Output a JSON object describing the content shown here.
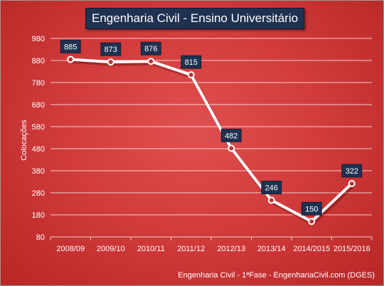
{
  "chart_data": {
    "type": "line",
    "title": "Engenharia Civil - Ensino Universitário",
    "xlabel": "",
    "ylabel": "Colocações",
    "categories": [
      "2008/09",
      "2009/10",
      "2010/11",
      "2011/12",
      "2012/13",
      "2013/14",
      "2014/2015",
      "2015/2016"
    ],
    "series": [
      {
        "values": [
          885,
          873,
          876,
          815,
          482,
          246,
          150,
          322
        ]
      }
    ],
    "yticks": [
      80,
      180,
      280,
      380,
      480,
      580,
      680,
      780,
      880,
      980
    ],
    "ylim": [
      80,
      980
    ],
    "grid": true,
    "line_color": "#ffffff",
    "label_box_color": "#1f3150",
    "source": "Engenharia Civil - 1ªFase - EngenhariaCivil.com (DGES)"
  }
}
